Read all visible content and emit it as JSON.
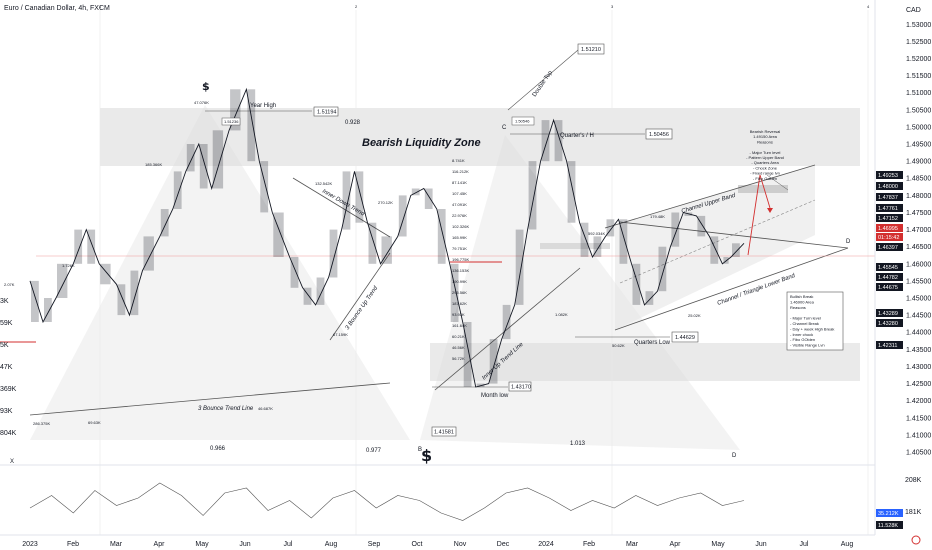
{
  "header": {
    "title": "Euro / Canadian Dollar, 4h, FXCM",
    "currency": "CAD"
  },
  "colors": {
    "candle": "#131722",
    "accent_red": "#d32f2f",
    "zone_gray": "#e0e0e0",
    "tag_dark": "#131722",
    "tag_blue": "#2962ff"
  },
  "chart_data": {
    "type": "line",
    "x_ticks": [
      "2023",
      "Feb",
      "Mar",
      "Apr",
      "May",
      "Jun",
      "Jul",
      "Aug",
      "Sep",
      "Oct",
      "Nov",
      "Dec",
      "2024",
      "Feb",
      "Mar",
      "Apr",
      "May",
      "Jun",
      "Jul",
      "Aug"
    ],
    "y_ticks": [
      "1.53000",
      "1.52500",
      "1.52000",
      "1.51500",
      "1.51000",
      "1.50500",
      "1.50000",
      "1.49500",
      "1.49000",
      "1.48500",
      "1.48000",
      "1.47500",
      "1.47000",
      "1.46500",
      "1.46000",
      "1.45500",
      "1.45000",
      "1.44500",
      "1.44000",
      "1.43500",
      "1.43000",
      "1.42500",
      "1.42000",
      "1.41500",
      "1.41000",
      "1.40500"
    ],
    "ylim": [
      1.405,
      1.533
    ],
    "price_path": [
      [
        0,
        1.455
      ],
      [
        0.3,
        1.443
      ],
      [
        0.6,
        1.45
      ],
      [
        1.0,
        1.46
      ],
      [
        1.3,
        1.47
      ],
      [
        1.6,
        1.46
      ],
      [
        2.0,
        1.454
      ],
      [
        2.3,
        1.445
      ],
      [
        2.6,
        1.458
      ],
      [
        3.0,
        1.468
      ],
      [
        3.3,
        1.476
      ],
      [
        3.6,
        1.487
      ],
      [
        3.9,
        1.495
      ],
      [
        4.2,
        1.482
      ],
      [
        4.6,
        1.499
      ],
      [
        5.0,
        1.511
      ],
      [
        5.3,
        1.49
      ],
      [
        5.6,
        1.475
      ],
      [
        6.0,
        1.462
      ],
      [
        6.3,
        1.453
      ],
      [
        6.6,
        1.448
      ],
      [
        6.9,
        1.456
      ],
      [
        7.2,
        1.47
      ],
      [
        7.5,
        1.487
      ],
      [
        7.8,
        1.472
      ],
      [
        8.1,
        1.46
      ],
      [
        8.5,
        1.468
      ],
      [
        8.8,
        1.48
      ],
      [
        9.1,
        1.482
      ],
      [
        9.4,
        1.476
      ],
      [
        9.7,
        1.46
      ],
      [
        10.0,
        1.443
      ],
      [
        10.3,
        1.424
      ],
      [
        10.6,
        1.425
      ],
      [
        10.9,
        1.438
      ],
      [
        11.2,
        1.448
      ],
      [
        11.5,
        1.47
      ],
      [
        11.8,
        1.49
      ],
      [
        12.1,
        1.502
      ],
      [
        12.4,
        1.49
      ],
      [
        12.7,
        1.472
      ],
      [
        13.0,
        1.462
      ],
      [
        13.3,
        1.468
      ],
      [
        13.6,
        1.473
      ],
      [
        13.9,
        1.46
      ],
      [
        14.2,
        1.448
      ],
      [
        14.5,
        1.452
      ],
      [
        14.8,
        1.465
      ],
      [
        15.1,
        1.475
      ],
      [
        15.4,
        1.474
      ],
      [
        15.7,
        1.468
      ],
      [
        16.0,
        1.46
      ],
      [
        16.2,
        1.462
      ],
      [
        16.5,
        1.466
      ]
    ],
    "osc_path": [
      [
        0,
        -0.2
      ],
      [
        0.5,
        0.3
      ],
      [
        1.0,
        -0.4
      ],
      [
        1.5,
        0.5
      ],
      [
        2.0,
        -0.1
      ],
      [
        2.5,
        0.2
      ],
      [
        3.0,
        0.8
      ],
      [
        3.5,
        0.3
      ],
      [
        4.0,
        -0.5
      ],
      [
        4.5,
        0.4
      ],
      [
        5.0,
        0.6
      ],
      [
        5.5,
        -0.3
      ],
      [
        6.0,
        0.1
      ],
      [
        6.5,
        -0.6
      ],
      [
        7.0,
        0.2
      ],
      [
        7.5,
        0.5
      ],
      [
        8.0,
        -0.2
      ],
      [
        8.5,
        0.3
      ],
      [
        9.0,
        0.1
      ],
      [
        9.5,
        -0.4
      ],
      [
        10.0,
        -0.7
      ],
      [
        10.5,
        -0.2
      ],
      [
        11.0,
        0.4
      ],
      [
        11.5,
        0.6
      ],
      [
        12.0,
        0.2
      ],
      [
        12.5,
        -0.3
      ],
      [
        13.0,
        0.1
      ],
      [
        13.5,
        -0.2
      ],
      [
        14.0,
        0.3
      ],
      [
        14.5,
        -0.1
      ],
      [
        15.0,
        0.2
      ],
      [
        15.5,
        0.4
      ],
      [
        16.0,
        -0.1
      ],
      [
        16.5,
        0.1
      ]
    ],
    "osc_ticks": [
      "208K",
      "181K"
    ],
    "events": [
      "1",
      "2",
      "3",
      "4"
    ]
  },
  "annotations": {
    "year_high": "Year High",
    "year_high_price": "1.51194",
    "peak_small": "1.51236",
    "bearish_zone": "Bearish Liquidity Zone",
    "ratio_1": "0.928",
    "ratio_2": "0.966",
    "ratio_3": "0.977",
    "ratio_4": "1.013",
    "double_top": "Double Top",
    "double_top_price": "1.51210",
    "c_label": "C",
    "c_price": "1.50546",
    "quarter_h": "Quarter's / H",
    "quarter_h_price": "1.50456",
    "bounce_line": "3 Bounce Trend Line",
    "inner_down": "Inner Down Trend",
    "bounce_up": "3 Bounce Up Trend",
    "inner_up": "Inner Up Trend Line",
    "month_low": "Month low",
    "month_low_price": "1.43170",
    "b_label": "B",
    "b_price": "1.41581",
    "quarters_low": "Quarters Low",
    "quarters_low_price": "1.44629",
    "channel_upper": "Channel Upper Band",
    "channel_lower": "Channel / Triangle Lower Band",
    "d_label": "D",
    "x_label": "X",
    "dollar": "$",
    "bearish_reversal": [
      "Bearish Reversal",
      "1.49150 Area",
      "Reasons",
      "",
      "- Major Turn level",
      "- Pattern Upper Band",
      "- Quarters Area",
      "- Chock Zone",
      "- Fixed range lvn",
      "- Fibo Golden"
    ],
    "bullish_break": [
      "Bullish Break",
      "1.46900 Area",
      "Reasons",
      "",
      "- Major Turn level",
      "- Channel Break",
      "- Day + week High Break",
      "- Inner chock",
      "- Fibo GOlden",
      "- Visible Range Lvn"
    ],
    "volume_labels": [
      "8.741K",
      "116.212K",
      "87.141K",
      "107.45K",
      "47.091K",
      "22.976K",
      "102.326K",
      "165.99K",
      "79.751K",
      "196.775K",
      "136.153K",
      "190.99K",
      "295.56K",
      "187.62K",
      "93.93K",
      "161.64K",
      "60.21K",
      "46.56K",
      "56.72K"
    ],
    "swing_labels": [
      "2.07K",
      "1.726K",
      "185.366K",
      "47.076K",
      "132.542K",
      "270.12K",
      "67.159K",
      "286.375K",
      "69.63K",
      "46.687K",
      "592.034K",
      "179.48K",
      "1.082K",
      "50.62K",
      "25.02K"
    ],
    "left_labels": [
      "3K",
      "59K",
      "5K",
      "47K",
      "369K",
      "93K",
      "804K"
    ]
  },
  "price_tags": [
    {
      "text": "1.49253",
      "kind": "dark"
    },
    {
      "text": "1.48000",
      "kind": "dark"
    },
    {
      "text": "1.47837",
      "kind": "dark"
    },
    {
      "text": "1.47761",
      "kind": "dark"
    },
    {
      "text": "1.47152",
      "kind": "dark"
    },
    {
      "text": "1.46995",
      "kind": "red"
    },
    {
      "text": "01:15:42",
      "kind": "red"
    },
    {
      "text": "1.46397",
      "kind": "dark"
    },
    {
      "text": "1.45545",
      "kind": "dark"
    },
    {
      "text": "1.44782",
      "kind": "dark"
    },
    {
      "text": "1.44675",
      "kind": "dark"
    },
    {
      "text": "1.43289",
      "kind": "dark"
    },
    {
      "text": "1.43280",
      "kind": "dark"
    },
    {
      "text": "1.42311",
      "kind": "dark"
    },
    {
      "text": "35.212K",
      "kind": "blue"
    },
    {
      "text": "11.528K",
      "kind": "dark"
    }
  ]
}
